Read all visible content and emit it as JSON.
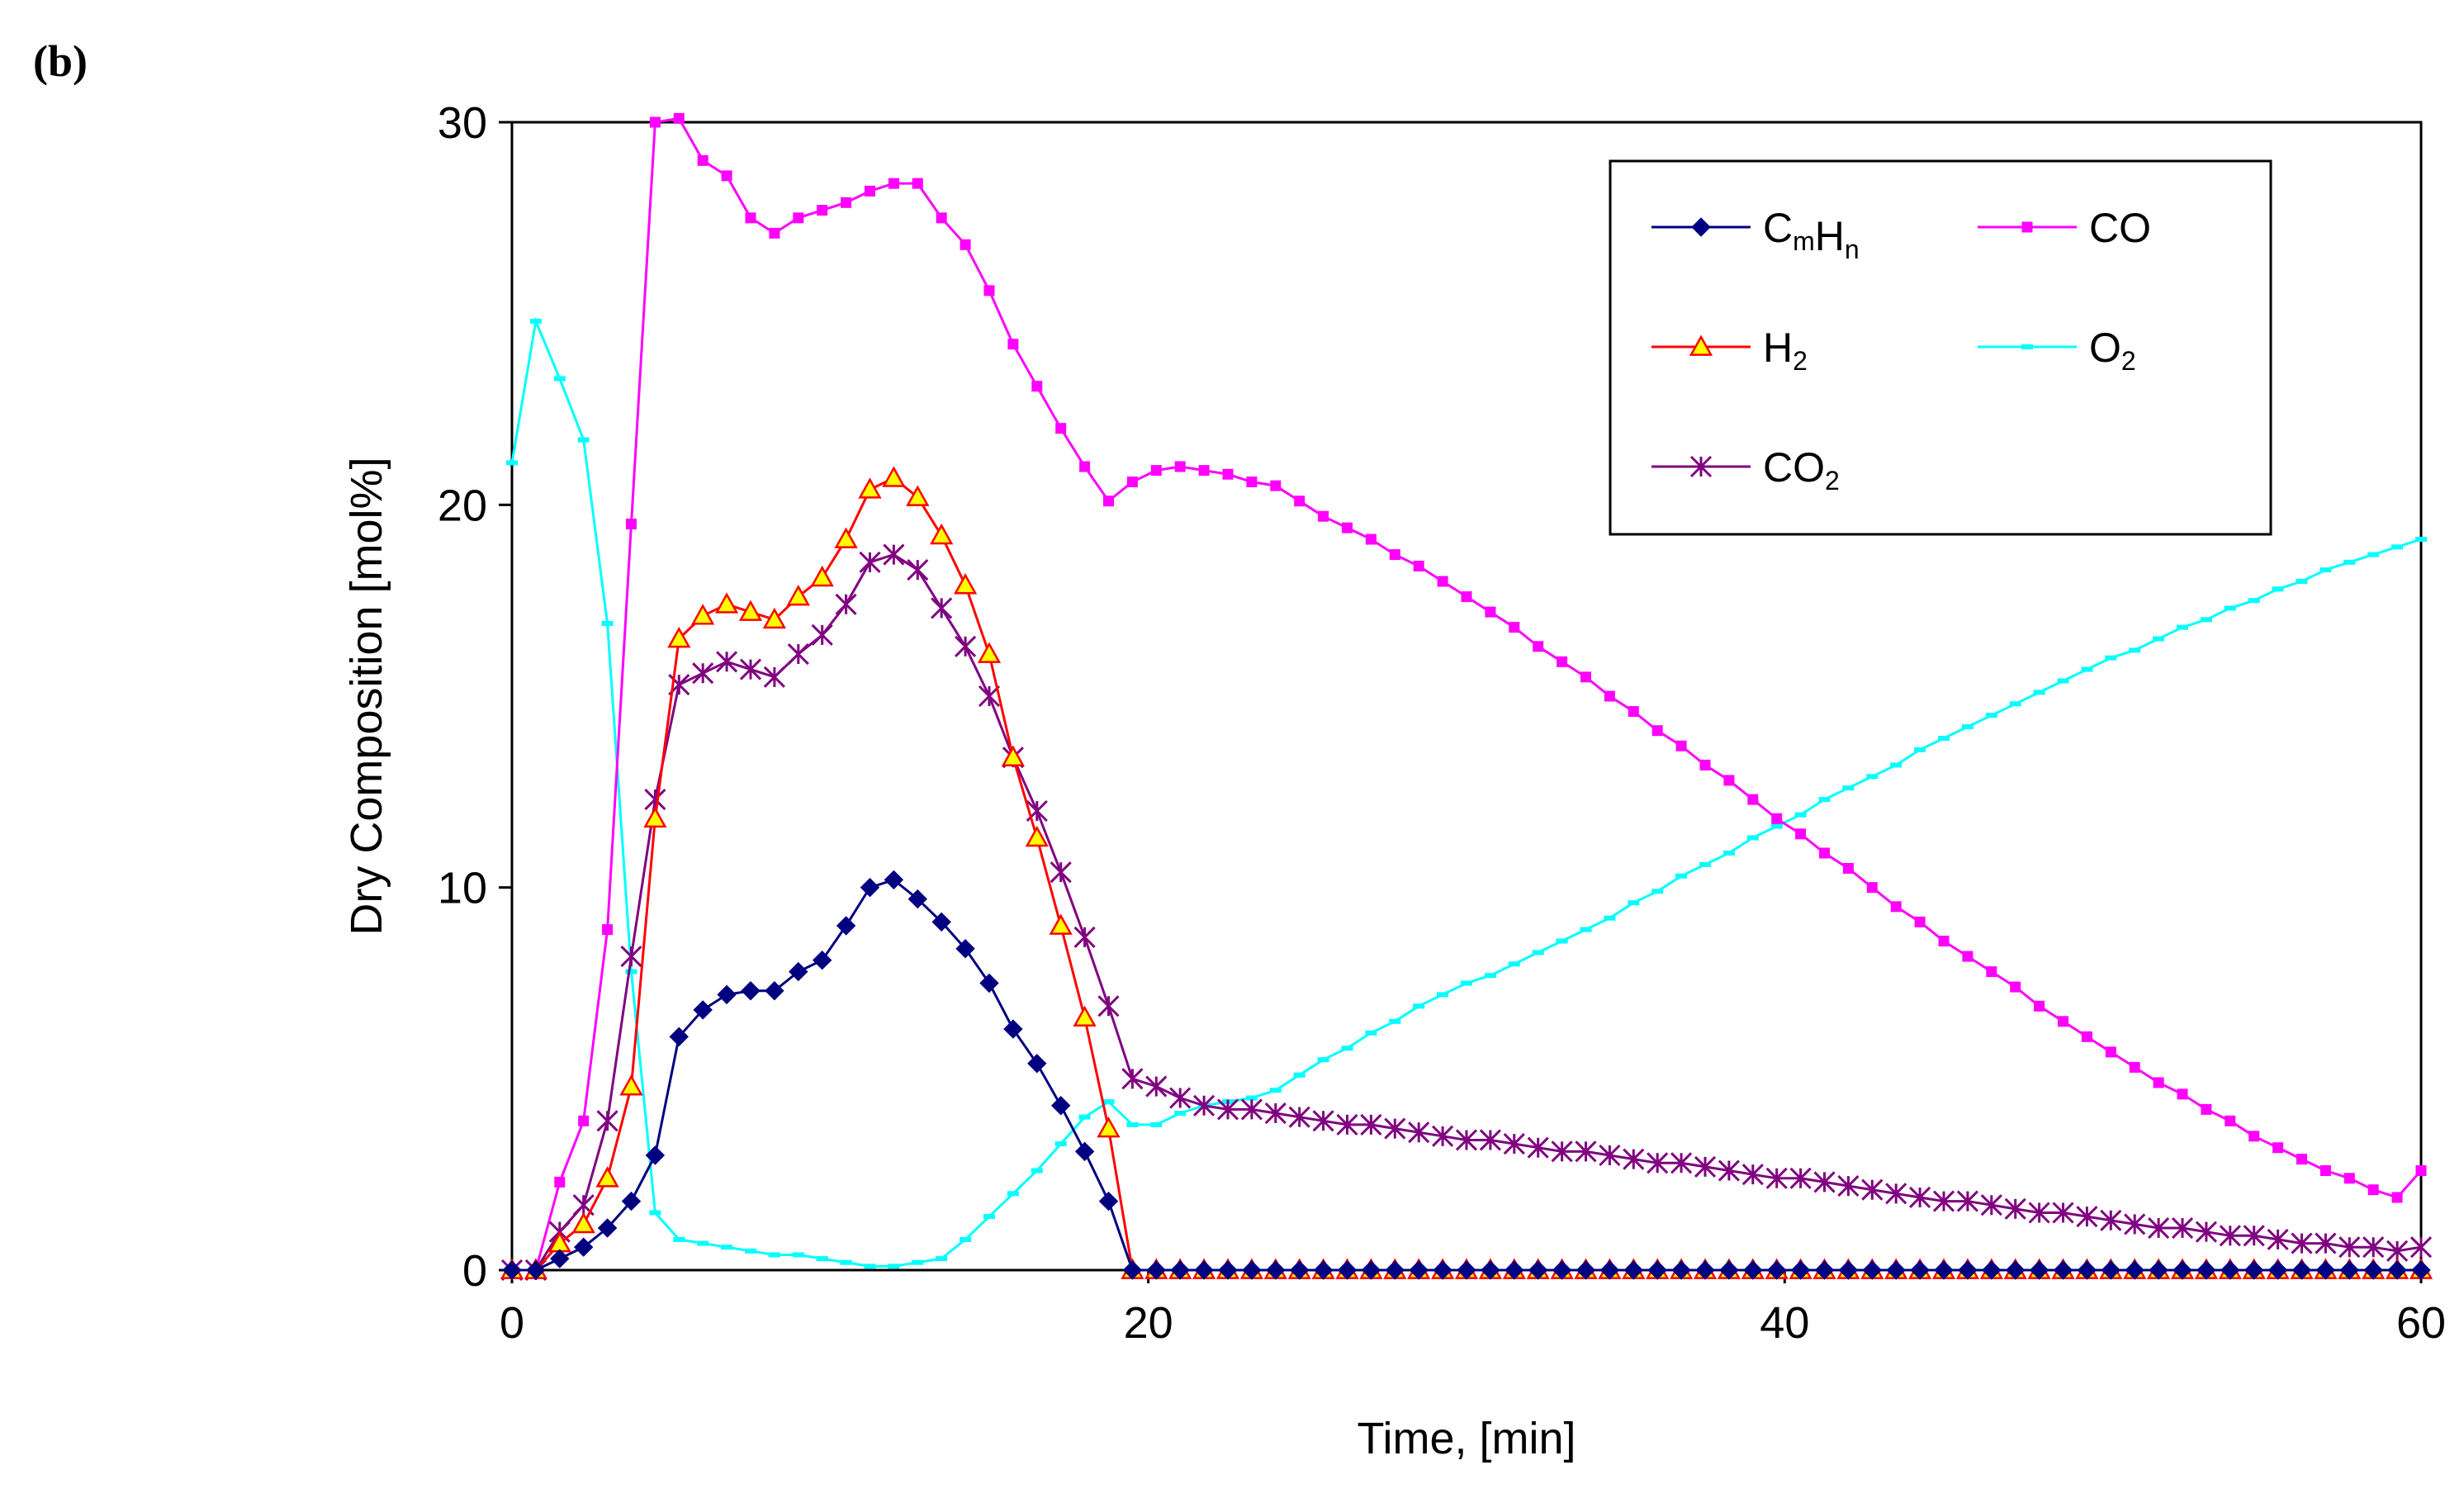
{
  "panel_label": "(b)",
  "chart_data": {
    "type": "line",
    "title": "",
    "xlabel": "Time, [min]",
    "ylabel": "Dry Composition [mol%]",
    "xlim": [
      0,
      60
    ],
    "ylim": [
      0,
      30
    ],
    "xticks": [
      0,
      20,
      40,
      60
    ],
    "yticks": [
      0,
      10,
      20,
      30
    ],
    "grid": false,
    "legend_position": "top-right",
    "series": [
      {
        "name": "CmHn",
        "legend_main": "C",
        "legend_sub1": "m",
        "legend_mid": "H",
        "legend_sub2": "n",
        "color": "#000080",
        "marker": "diamond",
        "x": [
          0,
          0.75,
          1.5,
          2.25,
          3,
          3.75,
          4.5,
          5.25,
          6,
          6.75,
          7.5,
          8.25,
          9,
          9.75,
          10.5,
          11.25,
          12,
          12.75,
          13.5,
          14.25,
          15,
          15.75,
          16.5,
          17.25,
          18,
          18.75,
          19.5,
          20.25,
          21,
          21.75,
          22.5,
          23.25,
          24,
          24.75,
          25.5,
          26.25,
          27,
          27.75,
          28.5,
          29.25,
          30,
          30.75,
          31.5,
          32.25,
          33,
          33.75,
          34.5,
          35.25,
          36,
          36.75,
          37.5,
          38.25,
          39,
          39.75,
          40.5,
          41.25,
          42,
          42.75,
          43.5,
          44.25,
          45,
          45.75,
          46.5,
          47.25,
          48,
          48.75,
          49.5,
          50.25,
          51,
          51.75,
          52.5,
          53.25,
          54,
          54.75,
          55.5,
          56.25,
          57,
          57.75,
          58.5,
          59.25,
          60
        ],
        "y": [
          0,
          0,
          0.3,
          0.6,
          1.1,
          1.8,
          3,
          6.1,
          6.8,
          7.2,
          7.3,
          7.3,
          7.8,
          8.1,
          9,
          10,
          10.2,
          9.7,
          9.1,
          8.4,
          7.5,
          6.3,
          5.4,
          4.3,
          3.1,
          1.8,
          0,
          0,
          0,
          0,
          0,
          0,
          0,
          0,
          0,
          0,
          0,
          0,
          0,
          0,
          0,
          0,
          0,
          0,
          0,
          0,
          0,
          0,
          0,
          0,
          0,
          0,
          0,
          0,
          0,
          0,
          0,
          0,
          0,
          0,
          0,
          0,
          0,
          0,
          0,
          0,
          0,
          0,
          0,
          0,
          0,
          0,
          0,
          0,
          0,
          0,
          0,
          0,
          0,
          0,
          0
        ]
      },
      {
        "name": "CO",
        "legend_main": "CO",
        "color": "#FF00FF",
        "marker": "square",
        "x": [
          0,
          0.75,
          1.5,
          2.25,
          3,
          3.75,
          4.5,
          5.25,
          6,
          6.75,
          7.5,
          8.25,
          9,
          9.75,
          10.5,
          11.25,
          12,
          12.75,
          13.5,
          14.25,
          15,
          15.75,
          16.5,
          17.25,
          18,
          18.75,
          19.5,
          20.25,
          21,
          21.75,
          22.5,
          23.25,
          24,
          24.75,
          25.5,
          26.25,
          27,
          27.75,
          28.5,
          29.25,
          30,
          30.75,
          31.5,
          32.25,
          33,
          33.75,
          34.5,
          35.25,
          36,
          36.75,
          37.5,
          38.25,
          39,
          39.75,
          40.5,
          41.25,
          42,
          42.75,
          43.5,
          44.25,
          45,
          45.75,
          46.5,
          47.25,
          48,
          48.75,
          49.5,
          50.25,
          51,
          51.75,
          52.5,
          53.25,
          54,
          54.75,
          55.5,
          56.25,
          57,
          57.75,
          58.5,
          59.25,
          60
        ],
        "y": [
          0,
          0,
          2.3,
          3.9,
          8.9,
          19.5,
          30,
          30.1,
          29,
          28.6,
          27.5,
          27.1,
          27.5,
          27.7,
          27.9,
          28.2,
          28.4,
          28.4,
          27.5,
          26.8,
          25.6,
          24.2,
          23.1,
          22,
          21,
          20.1,
          20.6,
          20.9,
          21.0,
          20.9,
          20.8,
          20.6,
          20.5,
          20.1,
          19.7,
          19.4,
          19.1,
          18.7,
          18.4,
          18.0,
          17.6,
          17.2,
          16.8,
          16.3,
          15.9,
          15.5,
          15.0,
          14.6,
          14.1,
          13.7,
          13.2,
          12.8,
          12.3,
          11.8,
          11.4,
          10.9,
          10.5,
          10.0,
          9.5,
          9.1,
          8.6,
          8.2,
          7.8,
          7.4,
          6.9,
          6.5,
          6.1,
          5.7,
          5.3,
          4.9,
          4.6,
          4.2,
          3.9,
          3.5,
          3.2,
          2.9,
          2.6,
          2.4,
          2.1,
          1.9,
          2.6
        ]
      },
      {
        "name": "H2",
        "legend_main": "H",
        "legend_sub1": "2",
        "color": "#FF0000",
        "marker": "triangle",
        "marker_fill": "#FFFF00",
        "x": [
          0,
          0.75,
          1.5,
          2.25,
          3,
          3.75,
          4.5,
          5.25,
          6,
          6.75,
          7.5,
          8.25,
          9,
          9.75,
          10.5,
          11.25,
          12,
          12.75,
          13.5,
          14.25,
          15,
          15.75,
          16.5,
          17.25,
          18,
          18.75,
          19.5,
          20.25,
          21,
          21.75,
          22.5,
          23.25,
          24,
          24.75,
          25.5,
          26.25,
          27,
          27.75,
          28.5,
          29.25,
          30,
          30.75,
          31.5,
          32.25,
          33,
          33.75,
          34.5,
          35.25,
          36,
          36.75,
          37.5,
          38.25,
          39,
          39.75,
          40.5,
          41.25,
          42,
          42.75,
          43.5,
          44.25,
          45,
          45.75,
          46.5,
          47.25,
          48,
          48.75,
          49.5,
          50.25,
          51,
          51.75,
          52.5,
          53.25,
          54,
          54.75,
          55.5,
          56.25,
          57,
          57.75,
          58.5,
          59.25,
          60
        ],
        "y": [
          0,
          0,
          0.7,
          1.2,
          2.4,
          4.8,
          11.8,
          16.5,
          17.1,
          17.4,
          17.2,
          17,
          17.6,
          18.1,
          19.1,
          20.4,
          20.7,
          20.2,
          19.2,
          17.9,
          16.1,
          13.4,
          11.3,
          9,
          6.6,
          3.7,
          0,
          0,
          0,
          0,
          0,
          0,
          0,
          0,
          0,
          0,
          0,
          0,
          0,
          0,
          0,
          0,
          0,
          0,
          0,
          0,
          0,
          0,
          0,
          0,
          0,
          0,
          0,
          0,
          0,
          0,
          0,
          0,
          0,
          0,
          0,
          0,
          0,
          0,
          0,
          0,
          0,
          0,
          0,
          0,
          0,
          0,
          0,
          0,
          0,
          0,
          0,
          0,
          0,
          0,
          0
        ]
      },
      {
        "name": "O2",
        "legend_main": "O",
        "legend_sub1": "2",
        "color": "#00FFFF",
        "marker": "dash",
        "x": [
          0,
          0.75,
          1.5,
          2.25,
          3,
          3.75,
          4.5,
          5.25,
          6,
          6.75,
          7.5,
          8.25,
          9,
          9.75,
          10.5,
          11.25,
          12,
          12.75,
          13.5,
          14.25,
          15,
          15.75,
          16.5,
          17.25,
          18,
          18.75,
          19.5,
          20.25,
          21,
          21.75,
          22.5,
          23.25,
          24,
          24.75,
          25.5,
          26.25,
          27,
          27.75,
          28.5,
          29.25,
          30,
          30.75,
          31.5,
          32.25,
          33,
          33.75,
          34.5,
          35.25,
          36,
          36.75,
          37.5,
          38.25,
          39,
          39.75,
          40.5,
          41.25,
          42,
          42.75,
          43.5,
          44.25,
          45,
          45.75,
          46.5,
          47.25,
          48,
          48.75,
          49.5,
          50.25,
          51,
          51.75,
          52.5,
          53.25,
          54,
          54.75,
          55.5,
          56.25,
          57,
          57.75,
          58.5,
          59.25,
          60
        ],
        "y": [
          21.1,
          24.8,
          23.3,
          21.7,
          16.9,
          7.8,
          1.5,
          0.8,
          0.7,
          0.6,
          0.5,
          0.4,
          0.4,
          0.3,
          0.2,
          0.1,
          0.1,
          0.2,
          0.3,
          0.8,
          1.4,
          2,
          2.6,
          3.3,
          4,
          4.4,
          3.8,
          3.8,
          4.1,
          4.3,
          4.4,
          4.5,
          4.7,
          5.1,
          5.5,
          5.8,
          6.2,
          6.5,
          6.9,
          7.2,
          7.5,
          7.7,
          8,
          8.3,
          8.6,
          8.9,
          9.2,
          9.6,
          9.9,
          10.3,
          10.6,
          10.9,
          11.3,
          11.6,
          11.9,
          12.3,
          12.6,
          12.9,
          13.2,
          13.6,
          13.9,
          14.2,
          14.5,
          14.8,
          15.1,
          15.4,
          15.7,
          16.0,
          16.2,
          16.5,
          16.8,
          17.0,
          17.3,
          17.5,
          17.8,
          18.0,
          18.3,
          18.5,
          18.7,
          18.9,
          19.1
        ]
      },
      {
        "name": "CO2",
        "legend_main": "CO",
        "legend_sub1": "2",
        "color": "#800080",
        "marker": "asterisk",
        "x": [
          0,
          0.75,
          1.5,
          2.25,
          3,
          3.75,
          4.5,
          5.25,
          6,
          6.75,
          7.5,
          8.25,
          9,
          9.75,
          10.5,
          11.25,
          12,
          12.75,
          13.5,
          14.25,
          15,
          15.75,
          16.5,
          17.25,
          18,
          18.75,
          19.5,
          20.25,
          21,
          21.75,
          22.5,
          23.25,
          24,
          24.75,
          25.5,
          26.25,
          27,
          27.75,
          28.5,
          29.25,
          30,
          30.75,
          31.5,
          32.25,
          33,
          33.75,
          34.5,
          35.25,
          36,
          36.75,
          37.5,
          38.25,
          39,
          39.75,
          40.5,
          41.25,
          42,
          42.75,
          43.5,
          44.25,
          45,
          45.75,
          46.5,
          47.25,
          48,
          48.75,
          49.5,
          50.25,
          51,
          51.75,
          52.5,
          53.25,
          54,
          54.75,
          55.5,
          56.25,
          57,
          57.75,
          58.5,
          59.25,
          60
        ],
        "y": [
          0,
          0,
          1,
          1.7,
          3.9,
          8.2,
          12.3,
          15.3,
          15.6,
          15.9,
          15.7,
          15.5,
          16.1,
          16.6,
          17.4,
          18.5,
          18.7,
          18.3,
          17.3,
          16.3,
          15,
          13.4,
          12,
          10.4,
          8.7,
          6.9,
          5,
          4.8,
          4.5,
          4.3,
          4.2,
          4.2,
          4.1,
          4.0,
          3.9,
          3.8,
          3.8,
          3.7,
          3.6,
          3.5,
          3.4,
          3.4,
          3.3,
          3.2,
          3.1,
          3.1,
          3.0,
          2.9,
          2.8,
          2.8,
          2.7,
          2.6,
          2.5,
          2.4,
          2.4,
          2.3,
          2.2,
          2.1,
          2.0,
          1.9,
          1.8,
          1.8,
          1.7,
          1.6,
          1.5,
          1.5,
          1.4,
          1.3,
          1.2,
          1.1,
          1.1,
          1.0,
          0.9,
          0.9,
          0.8,
          0.7,
          0.7,
          0.6,
          0.6,
          0.5,
          0.6
        ]
      }
    ]
  }
}
